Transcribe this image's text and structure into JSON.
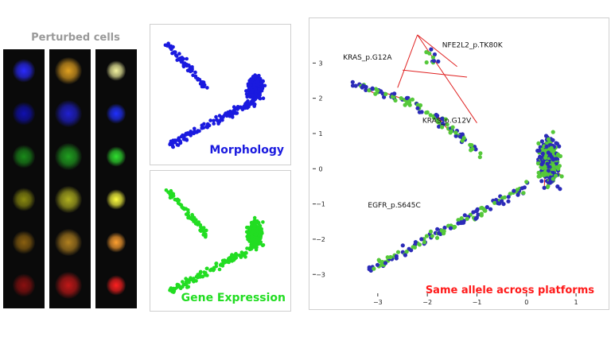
{
  "cells": {
    "title": "Perturbed cells",
    "rows": [
      {
        "channel": "composite",
        "colors": [
          "#2a2aff",
          "#e0a020",
          "#f4f4a0"
        ]
      },
      {
        "channel": "dna",
        "colors": [
          "#1010b0",
          "#2020d0",
          "#2030ff"
        ]
      },
      {
        "channel": "er",
        "colors": [
          "#1a8a1a",
          "#20a020",
          "#30e030"
        ]
      },
      {
        "channel": "rna",
        "colors": [
          "#8a8a10",
          "#b0b020",
          "#ffff40"
        ]
      },
      {
        "channel": "agp",
        "colors": [
          "#8a6010",
          "#b08020",
          "#ffa030"
        ]
      },
      {
        "channel": "mito",
        "colors": [
          "#8a1010",
          "#c01818",
          "#ff2020"
        ]
      }
    ]
  },
  "morphology_panel": {
    "label": "Morphology",
    "color": "#1a1adf"
  },
  "gene_panel": {
    "label": "Gene Expression",
    "color": "#22dd22"
  },
  "allele_panel": {
    "label": "Same allele across platforms",
    "label_color": "#ff1a1a",
    "x_ticks": [
      "−3",
      "−2",
      "−1",
      "0",
      "1"
    ],
    "y_ticks": [
      "−3",
      "−2",
      "−1",
      "0",
      "1",
      "2",
      "3"
    ],
    "annotations": [
      "KRAS_p.G12A",
      "NFE2L2_p.TK80K",
      "KRAS_p.G12V",
      "EGFR_p.S645C"
    ],
    "colors": {
      "morphology": "#2b2bb8",
      "expression": "#55c83a",
      "edge": "#e02020"
    }
  }
}
